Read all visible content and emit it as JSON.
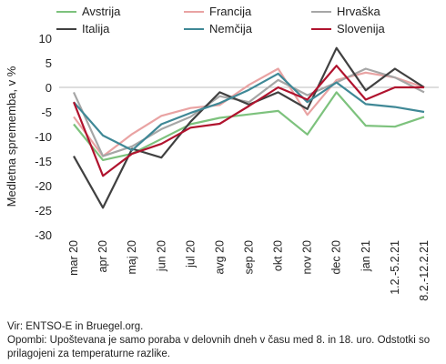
{
  "chart_data": {
    "type": "line",
    "ylabel": "Medletna sprememba, v %",
    "xlabel": "",
    "ylim": [
      -30,
      10
    ],
    "yticks": [
      10,
      5,
      0,
      -5,
      -10,
      -15,
      -20,
      -25,
      -30
    ],
    "grid": false,
    "legend": "top",
    "categories": [
      "mar 20",
      "apr 20",
      "maj 20",
      "jun 20",
      "jul 20",
      "avg 20",
      "sep 20",
      "okt 20",
      "nov 20",
      "dec 20",
      "jan 21",
      "1.2.-5.2.21",
      "8.2.-12.2.21"
    ],
    "series": [
      {
        "name": "Avstrija",
        "color": "#7dc27d",
        "values": [
          -7.5,
          -14.8,
          -13.5,
          -10.5,
          -7.5,
          -6.2,
          -5.5,
          -4.8,
          -9.6,
          -1.0,
          -7.8,
          -8.0,
          -6.0
        ]
      },
      {
        "name": "Francija",
        "color": "#e9a3a3",
        "values": [
          -6.0,
          -14.0,
          -9.5,
          -5.8,
          -4.2,
          -3.6,
          0.5,
          3.8,
          -5.6,
          1.5,
          3.0,
          2.0,
          0.0
        ]
      },
      {
        "name": "Hrvaška",
        "color": "#a6a6a6",
        "values": [
          -1.0,
          -14.0,
          -12.0,
          -8.5,
          -6.0,
          -1.8,
          -3.0,
          1.5,
          -1.6,
          1.0,
          3.8,
          2.0,
          -1.0
        ]
      },
      {
        "name": "Italija",
        "color": "#404040",
        "values": [
          -14.0,
          -24.5,
          -12.5,
          -14.3,
          -7.0,
          -1.0,
          -3.5,
          -1.0,
          -4.4,
          8.0,
          -0.6,
          3.8,
          0.0
        ]
      },
      {
        "name": "Nemčija",
        "color": "#3f8896",
        "values": [
          -3.0,
          -9.8,
          -12.8,
          -7.5,
          -5.2,
          -3.2,
          -0.5,
          2.8,
          -3.0,
          1.0,
          -3.4,
          -4.0,
          -5.0
        ]
      },
      {
        "name": "Slovenija",
        "color": "#b0132e",
        "values": [
          -3.0,
          -18.0,
          -13.5,
          -11.5,
          -8.2,
          -7.4,
          -3.8,
          0.0,
          -2.5,
          4.4,
          -2.5,
          0.0,
          0.0
        ]
      }
    ]
  },
  "footnote": {
    "source": "Vir: ENTSO-E in Bruegel.org.",
    "notes": "Opombi: Upoštevana je samo poraba v delovnih dneh v času med 8. in 18. uro. Odstotki so prilagojeni za temperaturne razlike."
  }
}
